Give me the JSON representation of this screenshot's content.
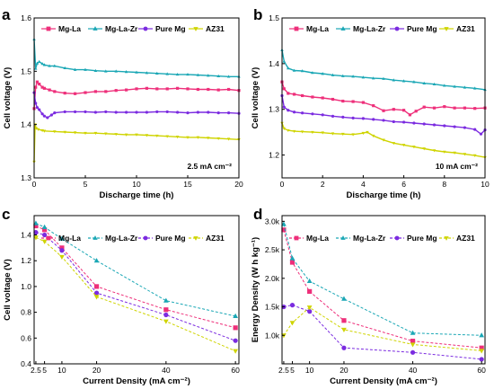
{
  "figure": {
    "panels": [
      "a",
      "b",
      "c",
      "d"
    ]
  },
  "chart_data": [
    {
      "id": "a",
      "type": "line",
      "panel_label": "a",
      "xlabel": "Discharge time (h)",
      "ylabel": "Cell voltage (V)",
      "xlim": [
        0,
        20
      ],
      "ylim": [
        1.3,
        1.6
      ],
      "xticks": [
        0,
        5,
        10,
        15,
        20
      ],
      "yticks": [
        1.3,
        1.4,
        1.5,
        1.6
      ],
      "annotation": "2.5 mA cm⁻²",
      "legend": "top",
      "series": [
        {
          "name": "Mg-La",
          "color": "#ee2f7a",
          "marker": "square",
          "x": [
            0,
            0.15,
            0.3,
            0.5,
            0.8,
            1,
            1.5,
            2,
            3,
            4,
            5,
            6,
            7,
            8,
            9,
            10,
            11,
            12,
            13,
            14,
            15,
            16,
            17,
            18,
            19,
            20
          ],
          "y": [
            1.43,
            1.47,
            1.48,
            1.476,
            1.47,
            1.468,
            1.465,
            1.462,
            1.459,
            1.458,
            1.46,
            1.462,
            1.462,
            1.464,
            1.465,
            1.467,
            1.468,
            1.467,
            1.467,
            1.468,
            1.467,
            1.466,
            1.466,
            1.465,
            1.466,
            1.464
          ]
        },
        {
          "name": "Mg-La-Zr",
          "color": "#1aa7b5",
          "marker": "triangle",
          "x": [
            0,
            0.15,
            0.3,
            0.5,
            0.8,
            1,
            1.5,
            2,
            3,
            4,
            5,
            6,
            7,
            8,
            9,
            10,
            11,
            12,
            13,
            14,
            15,
            16,
            17,
            18,
            19,
            20
          ],
          "y": [
            1.56,
            1.505,
            1.515,
            1.518,
            1.514,
            1.512,
            1.51,
            1.51,
            1.506,
            1.503,
            1.503,
            1.501,
            1.5,
            1.5,
            1.499,
            1.498,
            1.497,
            1.496,
            1.495,
            1.494,
            1.494,
            1.493,
            1.492,
            1.491,
            1.49,
            1.49
          ]
        },
        {
          "name": "Pure Mg",
          "color": "#7b2be0",
          "marker": "circle",
          "x": [
            0,
            0.15,
            0.3,
            0.5,
            0.8,
            1,
            1.3,
            1.7,
            2,
            3,
            4,
            5,
            6,
            7,
            8,
            9,
            10,
            11,
            12,
            13,
            14,
            15,
            16,
            17,
            18,
            19,
            20
          ],
          "y": [
            1.46,
            1.44,
            1.432,
            1.428,
            1.42,
            1.416,
            1.413,
            1.418,
            1.422,
            1.424,
            1.424,
            1.424,
            1.423,
            1.424,
            1.423,
            1.423,
            1.423,
            1.423,
            1.424,
            1.424,
            1.423,
            1.422,
            1.423,
            1.423,
            1.422,
            1.422,
            1.421
          ]
        },
        {
          "name": "AZ31",
          "color": "#cfd400",
          "marker": "triangle-down",
          "x": [
            0,
            0.1,
            0.2,
            0.4,
            0.8,
            1,
            2,
            3,
            4,
            5,
            6,
            7,
            8,
            9,
            10,
            11,
            12,
            13,
            14,
            15,
            16,
            17,
            18,
            19,
            20
          ],
          "y": [
            1.33,
            1.4,
            1.393,
            1.391,
            1.389,
            1.388,
            1.387,
            1.386,
            1.385,
            1.384,
            1.384,
            1.383,
            1.382,
            1.381,
            1.381,
            1.38,
            1.379,
            1.378,
            1.377,
            1.376,
            1.376,
            1.375,
            1.374,
            1.373,
            1.372
          ]
        }
      ]
    },
    {
      "id": "b",
      "type": "line",
      "panel_label": "b",
      "xlabel": "Discharge time (h)",
      "ylabel": "Cell voltage (V)",
      "xlim": [
        0,
        10
      ],
      "ylim": [
        1.15,
        1.5
      ],
      "xticks": [
        0,
        2,
        4,
        6,
        8,
        10
      ],
      "yticks": [
        1.2,
        1.3,
        1.4,
        1.5
      ],
      "annotation": "10 mA cm⁻²",
      "legend": "top",
      "series": [
        {
          "name": "Mg-La",
          "color": "#ee2f7a",
          "marker": "square",
          "x": [
            0,
            0.1,
            0.3,
            0.6,
            1,
            1.5,
            2,
            2.5,
            3,
            3.5,
            4,
            4.5,
            5,
            5.5,
            6,
            6.3,
            6.6,
            7,
            7.5,
            8,
            8.5,
            9,
            9.5,
            10
          ],
          "y": [
            1.36,
            1.345,
            1.335,
            1.333,
            1.33,
            1.327,
            1.325,
            1.322,
            1.318,
            1.317,
            1.315,
            1.308,
            1.297,
            1.3,
            1.298,
            1.288,
            1.296,
            1.305,
            1.303,
            1.306,
            1.303,
            1.303,
            1.302,
            1.303
          ]
        },
        {
          "name": "Mg-La-Zr",
          "color": "#1aa7b5",
          "marker": "triangle",
          "x": [
            0,
            0.1,
            0.3,
            0.6,
            1,
            1.5,
            2,
            2.5,
            3,
            3.5,
            4,
            4.5,
            5,
            5.5,
            6,
            6.5,
            7,
            7.5,
            8,
            8.5,
            9,
            9.5,
            10
          ],
          "y": [
            1.43,
            1.405,
            1.39,
            1.385,
            1.384,
            1.38,
            1.378,
            1.375,
            1.373,
            1.372,
            1.37,
            1.368,
            1.367,
            1.364,
            1.362,
            1.36,
            1.357,
            1.355,
            1.352,
            1.35,
            1.348,
            1.346,
            1.343
          ]
        },
        {
          "name": "Pure Mg",
          "color": "#7b2be0",
          "marker": "circle",
          "x": [
            0,
            0.1,
            0.3,
            0.6,
            1,
            1.5,
            2,
            2.5,
            3,
            3.5,
            4,
            4.5,
            5,
            5.5,
            6,
            6.5,
            7,
            7.5,
            8,
            8.5,
            9,
            9.5,
            9.8,
            10
          ],
          "y": [
            1.33,
            1.305,
            1.298,
            1.294,
            1.292,
            1.29,
            1.288,
            1.285,
            1.283,
            1.281,
            1.28,
            1.278,
            1.276,
            1.273,
            1.272,
            1.27,
            1.268,
            1.266,
            1.264,
            1.262,
            1.26,
            1.256,
            1.246,
            1.255
          ]
        },
        {
          "name": "AZ31",
          "color": "#cfd400",
          "marker": "triangle-down",
          "x": [
            0,
            0.1,
            0.3,
            0.6,
            1,
            1.5,
            2,
            2.5,
            3,
            3.5,
            4,
            4.2,
            4.5,
            5,
            5.5,
            6,
            6.5,
            7,
            7.5,
            8,
            8.5,
            9,
            9.5,
            10
          ],
          "y": [
            1.27,
            1.258,
            1.254,
            1.252,
            1.251,
            1.25,
            1.249,
            1.247,
            1.246,
            1.245,
            1.248,
            1.25,
            1.242,
            1.233,
            1.226,
            1.222,
            1.218,
            1.214,
            1.21,
            1.207,
            1.205,
            1.202,
            1.199,
            1.195
          ]
        }
      ]
    },
    {
      "id": "c",
      "type": "line",
      "panel_label": "c",
      "xlabel": "Current Density (mA cm⁻²)",
      "ylabel": "Cell voltage (V)",
      "xlim": [
        2,
        61
      ],
      "ylim": [
        0.4,
        1.55
      ],
      "xticks": [
        2.5,
        5,
        10,
        20,
        40,
        60
      ],
      "yticks": [
        0.4,
        0.6,
        0.8,
        1.0,
        1.2,
        1.4
      ],
      "legend": "top",
      "series": [
        {
          "name": "Mg-La",
          "color": "#ee2f7a",
          "marker": "square",
          "x": [
            2.5,
            5,
            10,
            20,
            40,
            60
          ],
          "y": [
            1.47,
            1.44,
            1.3,
            1.0,
            0.82,
            0.68
          ]
        },
        {
          "name": "Mg-La-Zr",
          "color": "#1aa7b5",
          "marker": "triangle",
          "x": [
            2.5,
            5,
            10,
            20,
            40,
            60
          ],
          "y": [
            1.49,
            1.46,
            1.37,
            1.2,
            0.89,
            0.77
          ]
        },
        {
          "name": "Pure Mg",
          "color": "#7b2be0",
          "marker": "circle",
          "x": [
            2.5,
            5,
            10,
            20,
            40,
            60
          ],
          "y": [
            1.42,
            1.4,
            1.28,
            0.95,
            0.78,
            0.58
          ]
        },
        {
          "name": "AZ31",
          "color": "#cfd400",
          "marker": "triangle-down",
          "x": [
            2.5,
            5,
            10,
            20,
            40,
            60
          ],
          "y": [
            1.38,
            1.35,
            1.23,
            0.92,
            0.73,
            0.5
          ]
        }
      ]
    },
    {
      "id": "d",
      "type": "line",
      "panel_label": "d",
      "xlabel": "Current Density (mA cm⁻²)",
      "ylabel": "Energy Density (W h kg⁻¹)",
      "xlim": [
        2,
        61
      ],
      "ylim": [
        500,
        3100
      ],
      "xticks": [
        2.5,
        5,
        10,
        20,
        40,
        60
      ],
      "yticks": [
        1000,
        1500,
        2000,
        2500,
        3000
      ],
      "yticklabels": [
        "1.0k",
        "1.5k",
        "2.0k",
        "2.5k",
        "3.0k"
      ],
      "legend": "top",
      "series": [
        {
          "name": "Mg-La",
          "color": "#ee2f7a",
          "marker": "square",
          "x": [
            2.5,
            5,
            10,
            20,
            40,
            60
          ],
          "y": [
            2850,
            2280,
            1770,
            1260,
            900,
            780
          ]
        },
        {
          "name": "Mg-La-Zr",
          "color": "#1aa7b5",
          "marker": "triangle",
          "x": [
            2.5,
            5,
            10,
            20,
            40,
            60
          ],
          "y": [
            2950,
            2350,
            1950,
            1640,
            1040,
            1000
          ]
        },
        {
          "name": "Pure Mg",
          "color": "#7b2be0",
          "marker": "circle",
          "x": [
            2.5,
            5,
            10,
            20,
            40,
            60
          ],
          "y": [
            1500,
            1530,
            1420,
            780,
            700,
            580
          ]
        },
        {
          "name": "AZ31",
          "color": "#cfd400",
          "marker": "triangle-down",
          "x": [
            2.5,
            5,
            10,
            20,
            40,
            60
          ],
          "y": [
            1000,
            1220,
            1490,
            1100,
            840,
            730
          ]
        }
      ]
    }
  ]
}
